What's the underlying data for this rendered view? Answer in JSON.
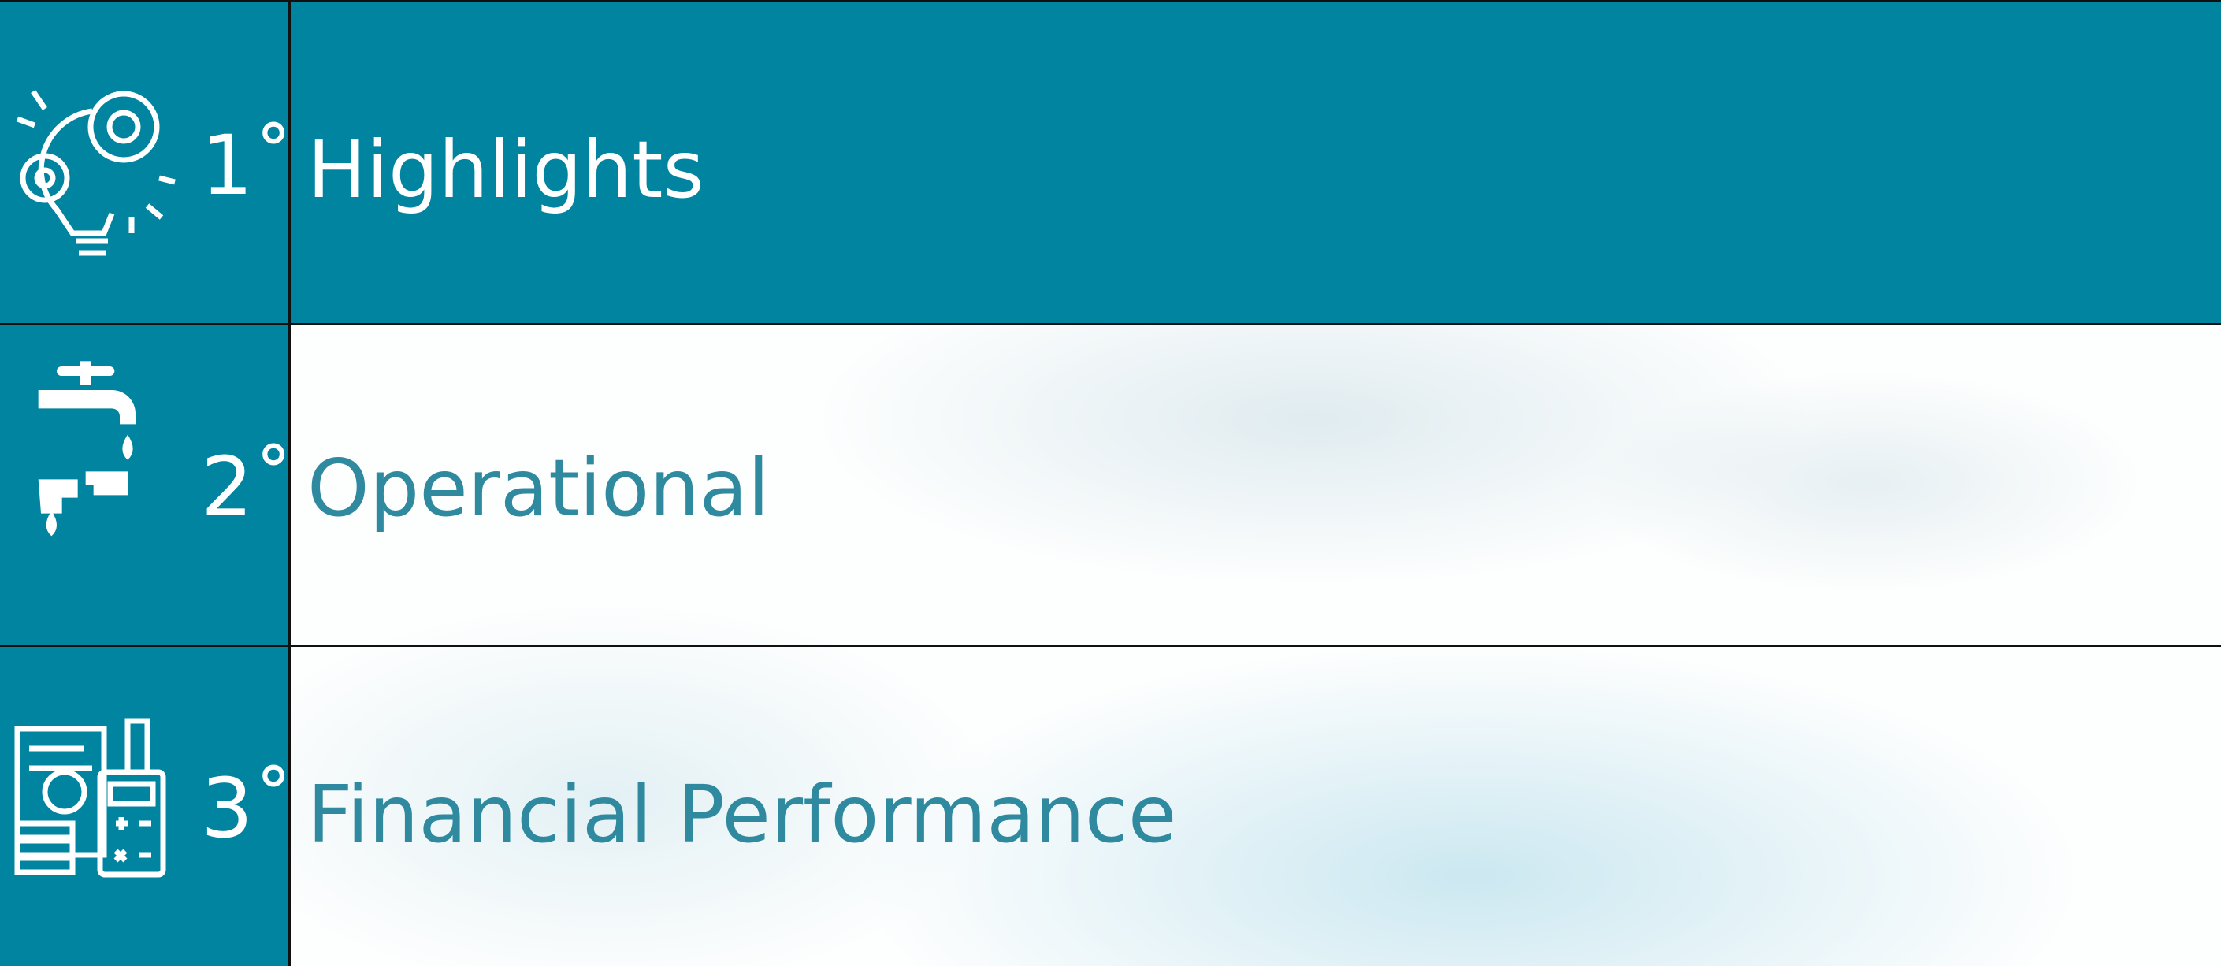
{
  "items": [
    {
      "number": "1˚",
      "label": "Highlights"
    },
    {
      "number": "2˚",
      "label": "Operational"
    },
    {
      "number": "3˚",
      "label": "Financial Performance"
    }
  ]
}
